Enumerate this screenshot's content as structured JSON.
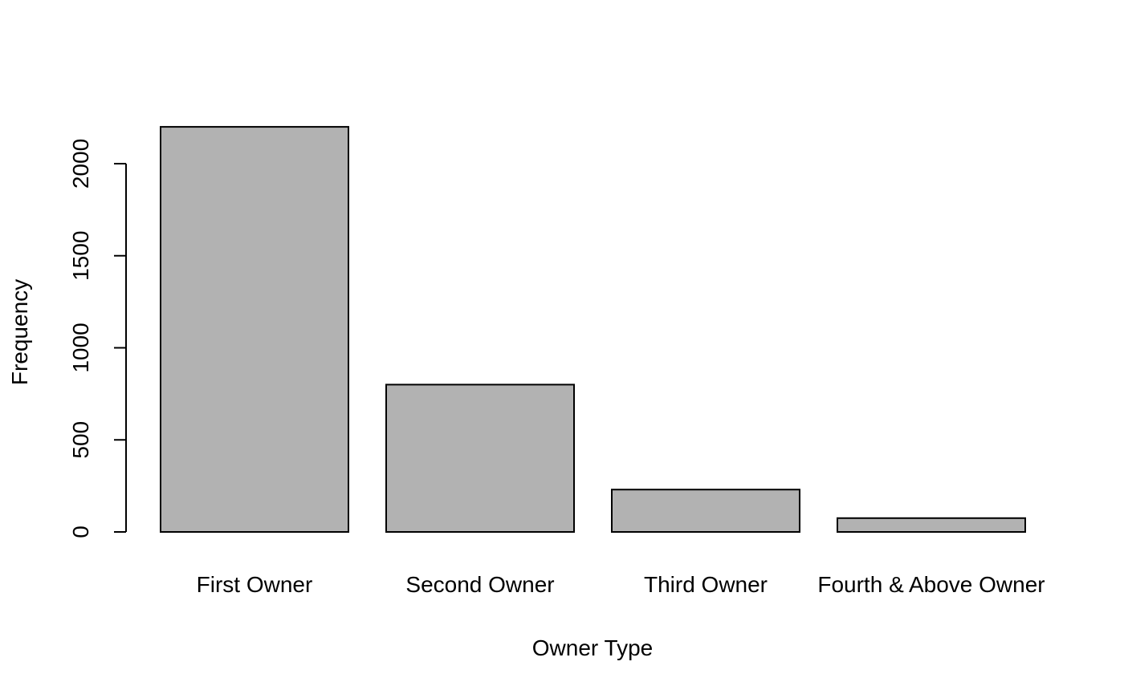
{
  "chart_data": {
    "type": "bar",
    "categories": [
      "First Owner",
      "Second Owner",
      "Third Owner",
      "Fourth & Above Owner"
    ],
    "values": [
      2200,
      800,
      230,
      75
    ],
    "xlabel": "Owner Type",
    "ylabel": "Frequency",
    "yticks": [
      0,
      500,
      1000,
      1500,
      2000
    ],
    "ylim": [
      0,
      2200
    ],
    "grid": false,
    "legend": "none",
    "bar_color": "#b2b2b2",
    "bar_edge_color": "#000000"
  }
}
